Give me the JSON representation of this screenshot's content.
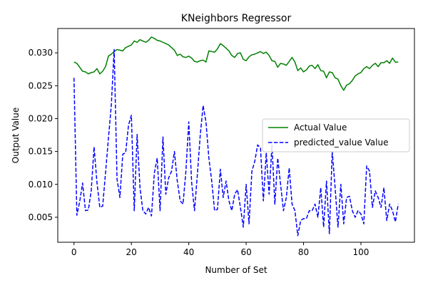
{
  "chart_data": {
    "type": "line",
    "title": "KNeighbors Regressor",
    "xlabel": "Number of Set",
    "ylabel": "Output Value",
    "xlim": [
      -5.65,
      118.65
    ],
    "ylim": [
      0.0012,
      0.0337
    ],
    "xticks": [
      0,
      20,
      40,
      60,
      80,
      100
    ],
    "yticks": [
      0.005,
      0.01,
      0.015,
      0.02,
      0.025,
      0.03
    ],
    "ytick_labels": [
      "0.005",
      "0.010",
      "0.015",
      "0.020",
      "0.025",
      "0.030"
    ],
    "grid": false,
    "legend_position": "center-right",
    "series": [
      {
        "name": "Actual Value",
        "color": "#008000",
        "dash": "solid",
        "x": [
          0,
          1,
          2,
          3,
          4,
          5,
          6,
          7,
          8,
          9,
          10,
          11,
          12,
          13,
          14,
          15,
          16,
          17,
          18,
          19,
          20,
          21,
          22,
          23,
          24,
          25,
          26,
          27,
          28,
          29,
          30,
          31,
          32,
          33,
          34,
          35,
          36,
          37,
          38,
          39,
          40,
          41,
          42,
          43,
          44,
          45,
          46,
          47,
          48,
          49,
          50,
          51,
          52,
          53,
          54,
          55,
          56,
          57,
          58,
          59,
          60,
          61,
          62,
          63,
          64,
          65,
          66,
          67,
          68,
          69,
          70,
          71,
          72,
          73,
          74,
          75,
          76,
          77,
          78,
          79,
          80,
          81,
          82,
          83,
          84,
          85,
          86,
          87,
          88,
          89,
          90,
          91,
          92,
          93,
          94,
          95,
          96,
          97,
          98,
          99,
          100,
          101,
          102,
          103,
          104,
          105,
          106,
          107,
          108,
          109,
          110,
          111,
          112,
          113
        ],
        "values": [
          0.0286,
          0.0284,
          0.0278,
          0.0272,
          0.0271,
          0.0268,
          0.027,
          0.0271,
          0.0276,
          0.0268,
          0.0272,
          0.0279,
          0.0295,
          0.0298,
          0.0302,
          0.0305,
          0.0304,
          0.0303,
          0.0308,
          0.031,
          0.0312,
          0.0318,
          0.0316,
          0.032,
          0.0318,
          0.0316,
          0.0319,
          0.0324,
          0.0322,
          0.0319,
          0.0318,
          0.0316,
          0.0314,
          0.0312,
          0.0308,
          0.0304,
          0.0296,
          0.0298,
          0.0294,
          0.0293,
          0.0295,
          0.0292,
          0.0287,
          0.0286,
          0.0288,
          0.0289,
          0.0286,
          0.0303,
          0.0302,
          0.0301,
          0.0306,
          0.0314,
          0.0311,
          0.0307,
          0.0303,
          0.0296,
          0.0293,
          0.0299,
          0.03,
          0.029,
          0.0288,
          0.0294,
          0.0297,
          0.0298,
          0.03,
          0.0302,
          0.0299,
          0.0301,
          0.0296,
          0.0288,
          0.0287,
          0.0278,
          0.0284,
          0.0283,
          0.0281,
          0.0287,
          0.0293,
          0.0286,
          0.0273,
          0.0277,
          0.0271,
          0.0274,
          0.028,
          0.0281,
          0.0276,
          0.0282,
          0.0273,
          0.0272,
          0.0262,
          0.0271,
          0.027,
          0.0262,
          0.026,
          0.025,
          0.0243,
          0.0251,
          0.0253,
          0.0258,
          0.0265,
          0.0268,
          0.027,
          0.0276,
          0.0279,
          0.0276,
          0.0281,
          0.0284,
          0.0279,
          0.0285,
          0.0285,
          0.0288,
          0.0284,
          0.0292,
          0.0286,
          0.0286
        ]
      },
      {
        "name": "predicted_value Value",
        "color": "#0000ff",
        "dash": "dashed",
        "x": [
          0,
          1,
          2,
          3,
          4,
          5,
          6,
          7,
          8,
          9,
          10,
          11,
          12,
          13,
          14,
          15,
          16,
          17,
          18,
          19,
          20,
          21,
          22,
          23,
          24,
          25,
          26,
          27,
          28,
          29,
          30,
          31,
          32,
          33,
          34,
          35,
          36,
          37,
          38,
          39,
          40,
          41,
          42,
          43,
          44,
          45,
          46,
          47,
          48,
          49,
          50,
          51,
          52,
          53,
          54,
          55,
          56,
          57,
          58,
          59,
          60,
          61,
          62,
          63,
          64,
          65,
          66,
          67,
          68,
          69,
          70,
          71,
          72,
          73,
          74,
          75,
          76,
          77,
          78,
          79,
          80,
          81,
          82,
          83,
          84,
          85,
          86,
          87,
          88,
          89,
          90,
          91,
          92,
          93,
          94,
          95,
          96,
          97,
          98,
          99,
          100,
          101,
          102,
          103,
          104,
          105,
          106,
          107,
          108,
          109,
          110,
          111,
          112,
          113
        ],
        "values": [
          0.0262,
          0.0053,
          0.0074,
          0.0102,
          0.006,
          0.0061,
          0.009,
          0.0157,
          0.0103,
          0.0065,
          0.0067,
          0.0118,
          0.017,
          0.022,
          0.0305,
          0.0108,
          0.008,
          0.0146,
          0.0148,
          0.019,
          0.0205,
          0.006,
          0.0176,
          0.0095,
          0.006,
          0.0055,
          0.0065,
          0.0052,
          0.0117,
          0.014,
          0.006,
          0.0172,
          0.0085,
          0.011,
          0.012,
          0.015,
          0.0105,
          0.0075,
          0.007,
          0.012,
          0.0195,
          0.0103,
          0.006,
          0.0115,
          0.0175,
          0.022,
          0.0195,
          0.014,
          0.0105,
          0.006,
          0.0062,
          0.0123,
          0.008,
          0.0105,
          0.0075,
          0.006,
          0.0085,
          0.0092,
          0.0065,
          0.0035,
          0.01,
          0.004,
          0.012,
          0.0135,
          0.016,
          0.0155,
          0.0075,
          0.0148,
          0.0085,
          0.016,
          0.007,
          0.014,
          0.01,
          0.006,
          0.008,
          0.0125,
          0.007,
          0.006,
          0.0022,
          0.0045,
          0.0048,
          0.0048,
          0.006,
          0.006,
          0.007,
          0.005,
          0.0095,
          0.0035,
          0.0105,
          0.0025,
          0.015,
          0.0095,
          0.0035,
          0.01,
          0.004,
          0.008,
          0.0082,
          0.006,
          0.005,
          0.006,
          0.0055,
          0.004,
          0.0128,
          0.012,
          0.0065,
          0.009,
          0.008,
          0.0065,
          0.0095,
          0.0045,
          0.007,
          0.006,
          0.0043,
          0.007
        ]
      }
    ]
  }
}
